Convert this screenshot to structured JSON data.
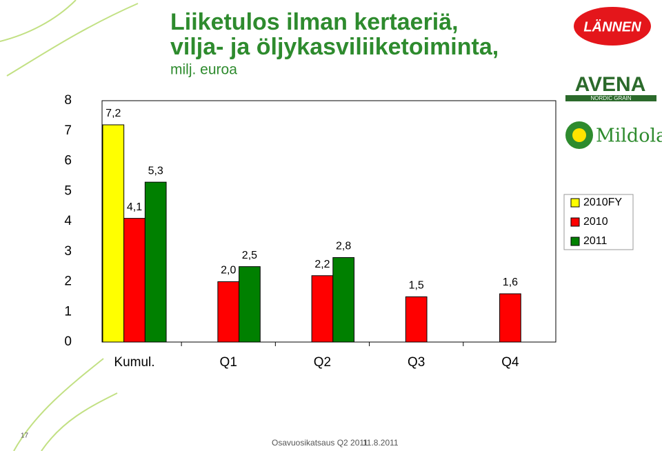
{
  "chart_data": {
    "type": "bar",
    "title": "Liiketulos ilman kertaeriä,",
    "title_line2": "vilja- ja öljykasviliiketoiminta,",
    "subtitle": "milj. euroa",
    "categories": [
      "Kumul.",
      "Q1",
      "Q2",
      "Q3",
      "Q4"
    ],
    "series": [
      {
        "name": "2010FY",
        "color": "#ffff00",
        "values": [
          7.2,
          null,
          null,
          null,
          null
        ],
        "value_labels": [
          "7,2",
          null,
          null,
          null,
          null
        ]
      },
      {
        "name": "2010",
        "color": "#ff0000",
        "values": [
          4.1,
          2.0,
          2.2,
          1.5,
          1.6
        ],
        "value_labels": [
          "4,1",
          "2,0",
          "2,2",
          "1,5",
          "1,6"
        ]
      },
      {
        "name": "2011",
        "color": "#008000",
        "values": [
          5.3,
          2.5,
          2.8,
          null,
          null
        ],
        "value_labels": [
          "5,3",
          "2,5",
          "2,8",
          null,
          null
        ]
      }
    ],
    "ylim": [
      0,
      8
    ],
    "yticks": [
      0,
      1,
      2,
      3,
      4,
      5,
      6,
      7,
      8
    ],
    "grid": false,
    "legend": "right"
  },
  "logos": [
    "LÄNNEN",
    "AVENA",
    "NORDIC GRAIN",
    "Mildola"
  ],
  "footer": {
    "page": "17",
    "text": "Osavuosikatsaus Q2 2011",
    "date": "11.8.2011"
  }
}
